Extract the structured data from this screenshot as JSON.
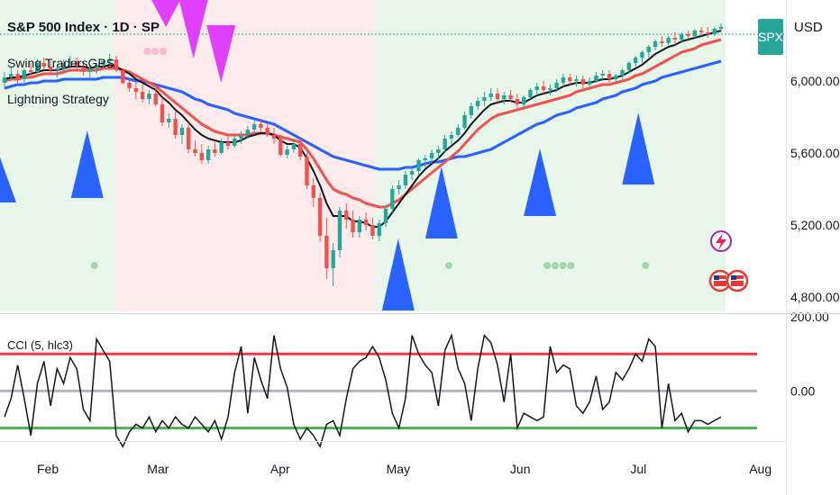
{
  "header": {
    "title": "S&P 500 Index · 1D · SP",
    "indicator_1": "Swing TradersGPS",
    "indicator_2": "Lightning Strategy",
    "symbol_badge": "SPX",
    "currency": "USD"
  },
  "cci_label": "CCI (5, hlc3)",
  "colors": {
    "up": "#26a69a",
    "down": "#ef5350",
    "ema_fast": "#131722",
    "ema_mid": "#ef5350",
    "ema_slow": "#2962ff",
    "bull_bg": "#e8f5e9",
    "bear_bg": "#fdeaea",
    "buy_triangle": "#2962ff",
    "sell_triangle": "#e040fb"
  },
  "icons": [
    "lightning-icon",
    "us-flag-icon"
  ],
  "chart_data": {
    "type": "candlestick",
    "x_axis_labels": [
      "Feb",
      "Mar",
      "Apr",
      "May",
      "Jun",
      "Jul",
      "Aug"
    ],
    "price_axis": {
      "ticks": [
        "6,000.00",
        "5,600.00",
        "5,200.00",
        "4,800.00"
      ],
      "ylim": [
        4720,
        6450
      ]
    },
    "cci_axis": {
      "ticks": [
        "200.00",
        "0.00"
      ],
      "levels": [
        100,
        0,
        -100
      ]
    },
    "x_start": "Jan 21",
    "x_end": "Jul 22",
    "candles": [
      [
        5990,
        6050,
        5970,
        6020
      ],
      [
        6020,
        6080,
        6000,
        6040
      ],
      [
        6040,
        6060,
        5990,
        6010
      ],
      [
        6010,
        6070,
        5990,
        6060
      ],
      [
        6060,
        6100,
        6030,
        6050
      ],
      [
        6050,
        6120,
        6040,
        6100
      ],
      [
        6100,
        6130,
        6060,
        6080
      ],
      [
        6080,
        6110,
        6040,
        6060
      ],
      [
        6060,
        6090,
        6020,
        6070
      ],
      [
        6070,
        6120,
        6050,
        6100
      ],
      [
        6100,
        6140,
        6080,
        6110
      ],
      [
        6110,
        6130,
        6060,
        6080
      ],
      [
        6080,
        6110,
        6030,
        6050
      ],
      [
        6050,
        6090,
        6020,
        6070
      ],
      [
        6070,
        6100,
        6040,
        6090
      ],
      [
        6090,
        6120,
        6070,
        6110
      ],
      [
        6110,
        6150,
        6090,
        6120
      ],
      [
        6120,
        6140,
        6050,
        6060
      ],
      [
        6060,
        6070,
        5980,
        5990
      ],
      [
        5990,
        6010,
        5940,
        5960
      ],
      [
        5960,
        5990,
        5900,
        5940
      ],
      [
        5940,
        5980,
        5880,
        5900
      ],
      [
        5900,
        5950,
        5870,
        5930
      ],
      [
        5930,
        5960,
        5860,
        5870
      ],
      [
        5870,
        5900,
        5750,
        5770
      ],
      [
        5770,
        5820,
        5740,
        5790
      ],
      [
        5790,
        5830,
        5680,
        5700
      ],
      [
        5700,
        5760,
        5650,
        5740
      ],
      [
        5740,
        5770,
        5600,
        5620
      ],
      [
        5620,
        5670,
        5580,
        5600
      ],
      [
        5600,
        5650,
        5540,
        5560
      ],
      [
        5560,
        5640,
        5540,
        5620
      ],
      [
        5620,
        5660,
        5580,
        5600
      ],
      [
        5600,
        5680,
        5590,
        5660
      ],
      [
        5660,
        5700,
        5620,
        5640
      ],
      [
        5640,
        5700,
        5630,
        5680
      ],
      [
        5680,
        5720,
        5650,
        5700
      ],
      [
        5700,
        5750,
        5680,
        5730
      ],
      [
        5730,
        5780,
        5700,
        5760
      ],
      [
        5760,
        5790,
        5720,
        5740
      ],
      [
        5740,
        5770,
        5690,
        5700
      ],
      [
        5700,
        5740,
        5650,
        5680
      ],
      [
        5680,
        5700,
        5580,
        5590
      ],
      [
        5590,
        5640,
        5570,
        5620
      ],
      [
        5620,
        5680,
        5600,
        5650
      ],
      [
        5650,
        5690,
        5560,
        5580
      ],
      [
        5580,
        5600,
        5400,
        5420
      ],
      [
        5420,
        5460,
        5300,
        5350
      ],
      [
        5350,
        5380,
        5110,
        5140
      ],
      [
        5140,
        5240,
        4900,
        4960
      ],
      [
        4960,
        5100,
        4860,
        5060
      ],
      [
        5060,
        5300,
        5020,
        5280
      ],
      [
        5280,
        5320,
        5180,
        5230
      ],
      [
        5230,
        5280,
        5130,
        5160
      ],
      [
        5160,
        5250,
        5130,
        5230
      ],
      [
        5230,
        5270,
        5170,
        5200
      ],
      [
        5200,
        5240,
        5120,
        5140
      ],
      [
        5140,
        5230,
        5110,
        5210
      ],
      [
        5210,
        5310,
        5190,
        5290
      ],
      [
        5290,
        5420,
        5270,
        5400
      ],
      [
        5400,
        5450,
        5370,
        5420
      ],
      [
        5420,
        5500,
        5400,
        5480
      ],
      [
        5480,
        5530,
        5450,
        5500
      ],
      [
        5500,
        5570,
        5480,
        5560
      ],
      [
        5560,
        5590,
        5520,
        5570
      ],
      [
        5570,
        5620,
        5540,
        5600
      ],
      [
        5600,
        5640,
        5560,
        5620
      ],
      [
        5620,
        5700,
        5600,
        5680
      ],
      [
        5680,
        5720,
        5650,
        5700
      ],
      [
        5700,
        5760,
        5690,
        5740
      ],
      [
        5740,
        5830,
        5730,
        5810
      ],
      [
        5810,
        5880,
        5790,
        5860
      ],
      [
        5860,
        5910,
        5840,
        5890
      ],
      [
        5890,
        5940,
        5860,
        5910
      ],
      [
        5910,
        5960,
        5890,
        5930
      ],
      [
        5930,
        5960,
        5880,
        5900
      ],
      [
        5900,
        5940,
        5870,
        5920
      ],
      [
        5920,
        5950,
        5880,
        5900
      ],
      [
        5900,
        5930,
        5850,
        5870
      ],
      [
        5870,
        5920,
        5850,
        5910
      ],
      [
        5910,
        5960,
        5900,
        5950
      ],
      [
        5950,
        5990,
        5920,
        5970
      ],
      [
        5970,
        6000,
        5930,
        5950
      ],
      [
        5950,
        5980,
        5920,
        5960
      ],
      [
        5960,
        6010,
        5940,
        5990
      ],
      [
        5990,
        6040,
        5970,
        6020
      ],
      [
        6020,
        6040,
        5980,
        6000
      ],
      [
        6000,
        6030,
        5970,
        6010
      ],
      [
        6010,
        6030,
        5960,
        5980
      ],
      [
        5980,
        6020,
        5970,
        6000
      ],
      [
        6000,
        6050,
        5990,
        6030
      ],
      [
        6030,
        6060,
        6000,
        6040
      ],
      [
        6040,
        6060,
        5990,
        6010
      ],
      [
        6010,
        6040,
        5990,
        6030
      ],
      [
        6030,
        6070,
        6010,
        6060
      ],
      [
        6060,
        6110,
        6040,
        6100
      ],
      [
        6100,
        6140,
        6080,
        6130
      ],
      [
        6130,
        6170,
        6100,
        6160
      ],
      [
        6160,
        6200,
        6130,
        6190
      ],
      [
        6190,
        6230,
        6170,
        6220
      ],
      [
        6220,
        6250,
        6190,
        6210
      ],
      [
        6210,
        6250,
        6200,
        6240
      ],
      [
        6240,
        6270,
        6200,
        6230
      ],
      [
        6230,
        6270,
        6210,
        6260
      ],
      [
        6260,
        6280,
        6230,
        6250
      ],
      [
        6250,
        6290,
        6240,
        6280
      ],
      [
        6280,
        6300,
        6250,
        6270
      ],
      [
        6270,
        6300,
        6240,
        6260
      ],
      [
        6260,
        6300,
        6250,
        6290
      ],
      [
        6290,
        6320,
        6270,
        6300
      ]
    ],
    "ema_fast": [
      6010,
      6020,
      6020,
      6030,
      6040,
      6050,
      6060,
      6060,
      6060,
      6070,
      6080,
      6080,
      6080,
      6070,
      6080,
      6080,
      6090,
      6080,
      6060,
      6040,
      6010,
      5990,
      5970,
      5950,
      5910,
      5880,
      5840,
      5810,
      5770,
      5730,
      5700,
      5680,
      5670,
      5660,
      5660,
      5660,
      5670,
      5690,
      5700,
      5710,
      5710,
      5700,
      5670,
      5650,
      5650,
      5630,
      5570,
      5500,
      5420,
      5320,
      5250,
      5250,
      5250,
      5220,
      5220,
      5210,
      5190,
      5190,
      5220,
      5270,
      5320,
      5370,
      5420,
      5470,
      5510,
      5540,
      5570,
      5610,
      5640,
      5670,
      5710,
      5760,
      5800,
      5840,
      5870,
      5880,
      5890,
      5890,
      5880,
      5880,
      5900,
      5920,
      5930,
      5940,
      5950,
      5970,
      5980,
      5990,
      5990,
      5990,
      6000,
      6010,
      6010,
      6020,
      6030,
      6050,
      6070,
      6090,
      6120,
      6150,
      6170,
      6190,
      6200,
      6220,
      6230,
      6240,
      6250,
      6260,
      6270,
      6280
    ],
    "ema_mid": [
      6000,
      6010,
      6010,
      6020,
      6020,
      6030,
      6040,
      6040,
      6040,
      6050,
      6060,
      6060,
      6060,
      6060,
      6060,
      6070,
      6070,
      6070,
      6060,
      6050,
      6030,
      6010,
      5990,
      5970,
      5940,
      5910,
      5880,
      5850,
      5820,
      5790,
      5760,
      5740,
      5720,
      5710,
      5700,
      5700,
      5700,
      5700,
      5710,
      5710,
      5710,
      5700,
      5690,
      5680,
      5670,
      5660,
      5620,
      5570,
      5510,
      5450,
      5400,
      5380,
      5370,
      5350,
      5340,
      5320,
      5310,
      5300,
      5300,
      5320,
      5340,
      5370,
      5400,
      5430,
      5460,
      5490,
      5520,
      5550,
      5580,
      5610,
      5650,
      5690,
      5730,
      5760,
      5790,
      5810,
      5820,
      5830,
      5840,
      5850,
      5860,
      5870,
      5880,
      5890,
      5900,
      5910,
      5920,
      5940,
      5950,
      5960,
      5970,
      5980,
      5980,
      5990,
      6000,
      6010,
      6030,
      6040,
      6060,
      6080,
      6100,
      6120,
      6140,
      6160,
      6170,
      6180,
      6200,
      6210,
      6220,
      6230
    ],
    "ema_slow": [
      5960,
      5970,
      5980,
      5980,
      5990,
      5990,
      6000,
      6000,
      6000,
      6010,
      6010,
      6010,
      6010,
      6010,
      6010,
      6020,
      6020,
      6020,
      6020,
      6010,
      6000,
      6000,
      5990,
      5980,
      5970,
      5960,
      5950,
      5940,
      5920,
      5900,
      5890,
      5870,
      5860,
      5850,
      5840,
      5820,
      5810,
      5800,
      5790,
      5780,
      5770,
      5760,
      5740,
      5720,
      5700,
      5680,
      5660,
      5640,
      5620,
      5600,
      5580,
      5570,
      5560,
      5550,
      5540,
      5530,
      5520,
      5510,
      5510,
      5510,
      5510,
      5520,
      5520,
      5530,
      5540,
      5550,
      5550,
      5560,
      5570,
      5580,
      5580,
      5590,
      5600,
      5610,
      5620,
      5640,
      5660,
      5680,
      5700,
      5720,
      5740,
      5760,
      5770,
      5790,
      5810,
      5820,
      5830,
      5850,
      5860,
      5870,
      5880,
      5900,
      5910,
      5920,
      5940,
      5950,
      5960,
      5980,
      5990,
      6000,
      6020,
      6030,
      6040,
      6050,
      6060,
      6070,
      6080,
      6090,
      6100,
      6110
    ],
    "cci": [
      -70,
      -20,
      70,
      -20,
      -120,
      20,
      80,
      -40,
      60,
      20,
      90,
      60,
      -50,
      -80,
      140,
      110,
      80,
      -120,
      -150,
      -110,
      -90,
      -100,
      -70,
      -110,
      -80,
      -100,
      -70,
      -90,
      -100,
      -70,
      -90,
      -110,
      -80,
      -130,
      -70,
      50,
      120,
      -60,
      90,
      30,
      -20,
      150,
      60,
      10,
      -90,
      -130,
      -100,
      -120,
      -150,
      -90,
      -80,
      -120,
      -20,
      60,
      80,
      90,
      120,
      90,
      30,
      -60,
      -100,
      -20,
      150,
      100,
      70,
      50,
      -40,
      110,
      150,
      60,
      20,
      -80,
      60,
      150,
      130,
      70,
      -30,
      100,
      -100,
      -60,
      -70,
      -80,
      -70,
      120,
      50,
      70,
      60,
      -40,
      -60,
      -30,
      40,
      -50,
      -30,
      50,
      30,
      60,
      100,
      80,
      140,
      120,
      -100,
      20,
      -80,
      -60,
      -110,
      -80,
      -80,
      -90,
      -80,
      -70
    ],
    "band_boundaries": {
      "bull_until": "Feb 18",
      "bear_until": "Apr 25"
    },
    "buy_signals": [
      "Jan 21",
      "Feb 11",
      "May 1",
      "May 12",
      "Jun 6",
      "Jul 1"
    ],
    "sell_signals": [
      "Mar 3",
      "Mar 10",
      "Mar 17"
    ]
  }
}
